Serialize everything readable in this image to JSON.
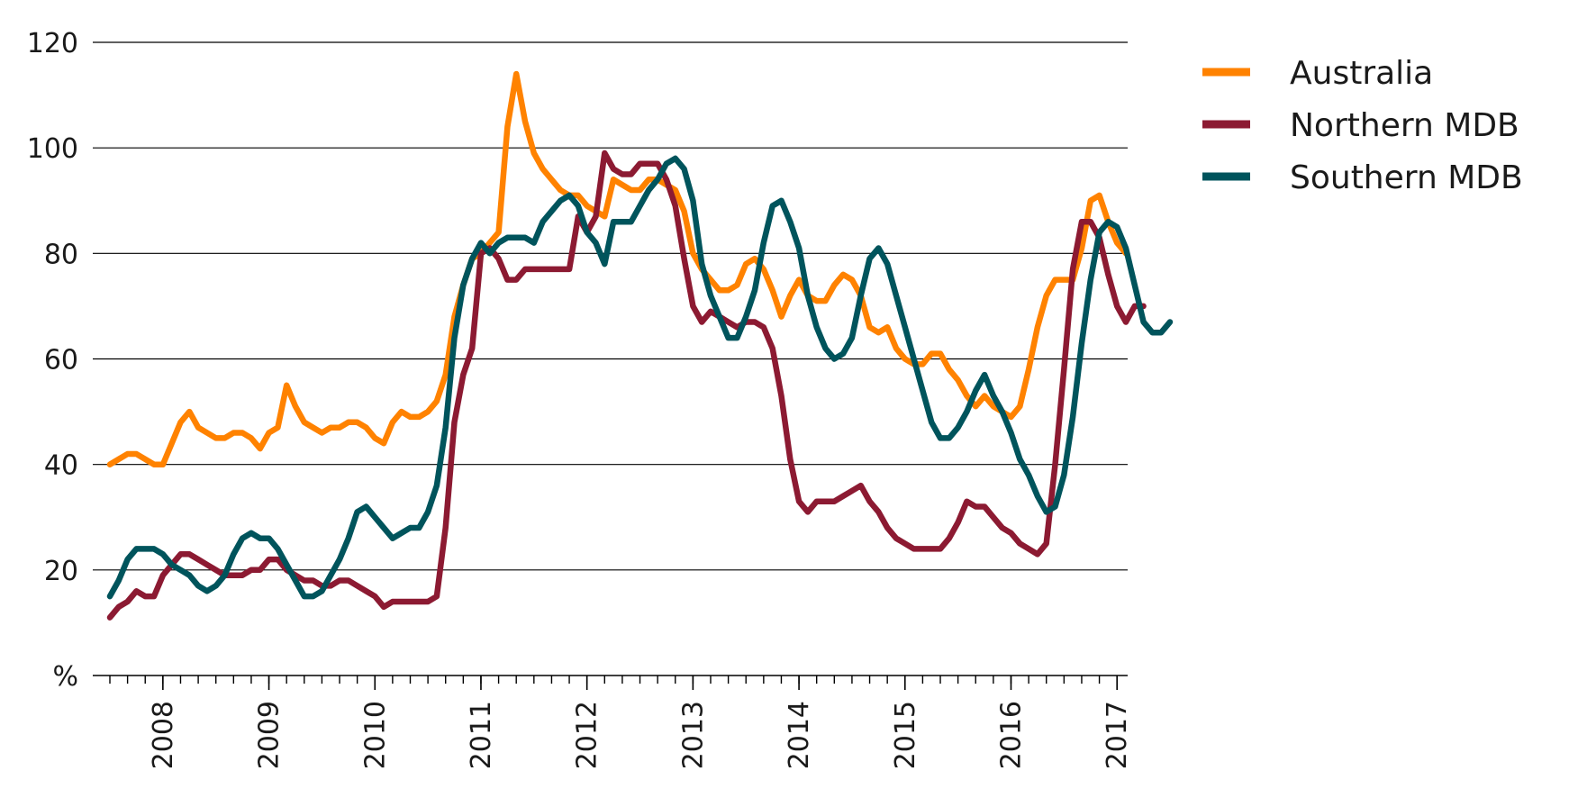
{
  "chart_data": {
    "type": "line",
    "title": "",
    "xlabel": "",
    "ylabel": "%",
    "ylim": [
      0,
      120
    ],
    "y_ticks": [
      "120",
      "100",
      "80",
      "60",
      "40",
      "20"
    ],
    "x_tick_labels": [
      "2008",
      "2009",
      "2010",
      "2011",
      "2012",
      "2013",
      "2014",
      "2015",
      "2016",
      "2017"
    ],
    "grid": "horizontal",
    "legend_position": "top-right",
    "x_start": "2007-07",
    "series": [
      {
        "name": "Australia",
        "color": "#FF8200",
        "values": [
          40,
          41,
          42,
          42,
          41,
          40,
          40,
          44,
          48,
          50,
          47,
          46,
          45,
          45,
          46,
          46,
          45,
          43,
          46,
          47,
          55,
          51,
          48,
          47,
          46,
          47,
          47,
          48,
          48,
          47,
          45,
          44,
          48,
          50,
          49,
          49,
          50,
          52,
          57,
          68,
          74,
          79,
          80,
          82,
          84,
          104,
          114,
          105,
          99,
          96,
          94,
          92,
          91,
          91,
          89,
          88,
          87,
          94,
          93,
          92,
          92,
          94,
          94,
          93,
          92,
          88,
          80,
          77,
          75,
          73,
          73,
          74,
          78,
          79,
          77,
          73,
          68,
          72,
          75,
          72,
          71,
          71,
          74,
          76,
          75,
          72,
          66,
          65,
          66,
          62,
          60,
          59,
          59,
          61,
          61,
          58,
          56,
          53,
          51,
          53,
          51,
          50,
          49,
          51,
          58,
          66,
          72,
          75,
          75,
          75,
          81,
          90,
          91,
          86,
          82,
          80
        ]
      },
      {
        "name": "Northern MDB",
        "color": "#8C1A32",
        "values": [
          11,
          13,
          14,
          16,
          15,
          15,
          19,
          21,
          23,
          23,
          22,
          21,
          20,
          19,
          19,
          19,
          20,
          20,
          22,
          22,
          20,
          19,
          18,
          18,
          17,
          17,
          18,
          18,
          17,
          16,
          15,
          13,
          14,
          14,
          14,
          14,
          14,
          15,
          28,
          48,
          57,
          62,
          80,
          81,
          79,
          75,
          75,
          77,
          77,
          77,
          77,
          77,
          77,
          87,
          84,
          87,
          99,
          96,
          95,
          95,
          97,
          97,
          97,
          94,
          89,
          79,
          70,
          67,
          69,
          68,
          67,
          66,
          67,
          67,
          66,
          62,
          53,
          41,
          33,
          31,
          33,
          33,
          33,
          34,
          35,
          36,
          33,
          31,
          28,
          26,
          25,
          24,
          24,
          24,
          24,
          26,
          29,
          33,
          32,
          32,
          30,
          28,
          27,
          25,
          24,
          23,
          25,
          40,
          58,
          77,
          86,
          86,
          83,
          76,
          70,
          67,
          70,
          70
        ]
      },
      {
        "name": "Southern MDB",
        "color": "#00545C",
        "values": [
          15,
          18,
          22,
          24,
          24,
          24,
          23,
          21,
          20,
          19,
          17,
          16,
          17,
          19,
          23,
          26,
          27,
          26,
          26,
          24,
          21,
          18,
          15,
          15,
          16,
          19,
          22,
          26,
          31,
          32,
          30,
          28,
          26,
          27,
          28,
          28,
          31,
          36,
          47,
          64,
          74,
          79,
          82,
          80,
          82,
          83,
          83,
          83,
          82,
          86,
          88,
          90,
          91,
          89,
          84,
          82,
          78,
          86,
          86,
          86,
          89,
          92,
          94,
          97,
          98,
          96,
          90,
          78,
          72,
          68,
          64,
          64,
          68,
          73,
          82,
          89,
          90,
          86,
          81,
          72,
          66,
          62,
          60,
          61,
          64,
          72,
          79,
          81,
          78,
          72,
          66,
          60,
          54,
          48,
          45,
          45,
          47,
          50,
          54,
          57,
          53,
          50,
          46,
          41,
          38,
          34,
          31,
          32,
          38,
          49,
          63,
          75,
          84,
          86,
          85,
          81,
          74,
          67,
          65,
          65,
          67
        ]
      }
    ]
  }
}
